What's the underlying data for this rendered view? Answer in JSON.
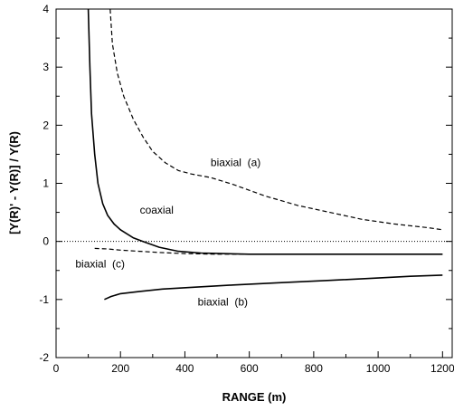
{
  "chart_data": {
    "type": "line",
    "title": "",
    "xlabel": "RANGE (m)",
    "ylabel": "[Y(R)' - Y(R)] / Y(R)",
    "xlim": [
      0,
      1230
    ],
    "ylim": [
      -2,
      4
    ],
    "x_ticks": [
      0,
      200,
      400,
      600,
      800,
      1000,
      1200
    ],
    "y_ticks": [
      -2,
      -1,
      0,
      1,
      2,
      3,
      4
    ],
    "grid": false,
    "legend": "none",
    "reference_line": {
      "y": 0,
      "style": "dotted"
    },
    "series": [
      {
        "name": "biaxial (a)",
        "style": "dashed",
        "color": "#000000",
        "points": [
          [
            168,
            4.0
          ],
          [
            175,
            3.4
          ],
          [
            190,
            2.9
          ],
          [
            210,
            2.5
          ],
          [
            240,
            2.1
          ],
          [
            270,
            1.8
          ],
          [
            300,
            1.55
          ],
          [
            340,
            1.35
          ],
          [
            380,
            1.22
          ],
          [
            420,
            1.16
          ],
          [
            480,
            1.1
          ],
          [
            550,
            0.98
          ],
          [
            650,
            0.78
          ],
          [
            750,
            0.62
          ],
          [
            850,
            0.5
          ],
          [
            950,
            0.38
          ],
          [
            1050,
            0.3
          ],
          [
            1150,
            0.24
          ],
          [
            1200,
            0.2
          ]
        ]
      },
      {
        "name": "coaxial",
        "style": "solid",
        "color": "#000000",
        "points": [
          [
            100,
            4.0
          ],
          [
            105,
            3.0
          ],
          [
            110,
            2.2
          ],
          [
            120,
            1.5
          ],
          [
            130,
            1.0
          ],
          [
            145,
            0.65
          ],
          [
            160,
            0.45
          ],
          [
            180,
            0.3
          ],
          [
            200,
            0.2
          ],
          [
            240,
            0.06
          ],
          [
            270,
            0.0
          ],
          [
            320,
            -0.1
          ],
          [
            380,
            -0.17
          ],
          [
            450,
            -0.2
          ],
          [
            600,
            -0.22
          ],
          [
            800,
            -0.22
          ],
          [
            1000,
            -0.22
          ],
          [
            1200,
            -0.22
          ]
        ]
      },
      {
        "name": "biaxial (c)",
        "style": "dashed",
        "color": "#000000",
        "points": [
          [
            120,
            -0.12
          ],
          [
            160,
            -0.13
          ],
          [
            200,
            -0.15
          ],
          [
            260,
            -0.17
          ],
          [
            320,
            -0.19
          ],
          [
            400,
            -0.21
          ],
          [
            500,
            -0.22
          ],
          [
            600,
            -0.22
          ],
          [
            800,
            -0.22
          ],
          [
            1000,
            -0.22
          ],
          [
            1200,
            -0.22
          ]
        ]
      },
      {
        "name": "biaxial (b)",
        "style": "solid",
        "color": "#000000",
        "points": [
          [
            150,
            -1.0
          ],
          [
            170,
            -0.95
          ],
          [
            200,
            -0.9
          ],
          [
            260,
            -0.86
          ],
          [
            330,
            -0.82
          ],
          [
            420,
            -0.79
          ],
          [
            550,
            -0.75
          ],
          [
            700,
            -0.71
          ],
          [
            850,
            -0.67
          ],
          [
            1000,
            -0.63
          ],
          [
            1100,
            -0.6
          ],
          [
            1200,
            -0.58
          ]
        ]
      }
    ],
    "annotations": [
      {
        "text": "biaxial  (a)",
        "x": 480,
        "y": 1.3
      },
      {
        "text": "coaxial",
        "x": 260,
        "y": 0.48
      },
      {
        "text": "biaxial  (c)",
        "x": 60,
        "y": -0.45
      },
      {
        "text": "biaxial  (b)",
        "x": 440,
        "y": -1.1
      }
    ]
  }
}
